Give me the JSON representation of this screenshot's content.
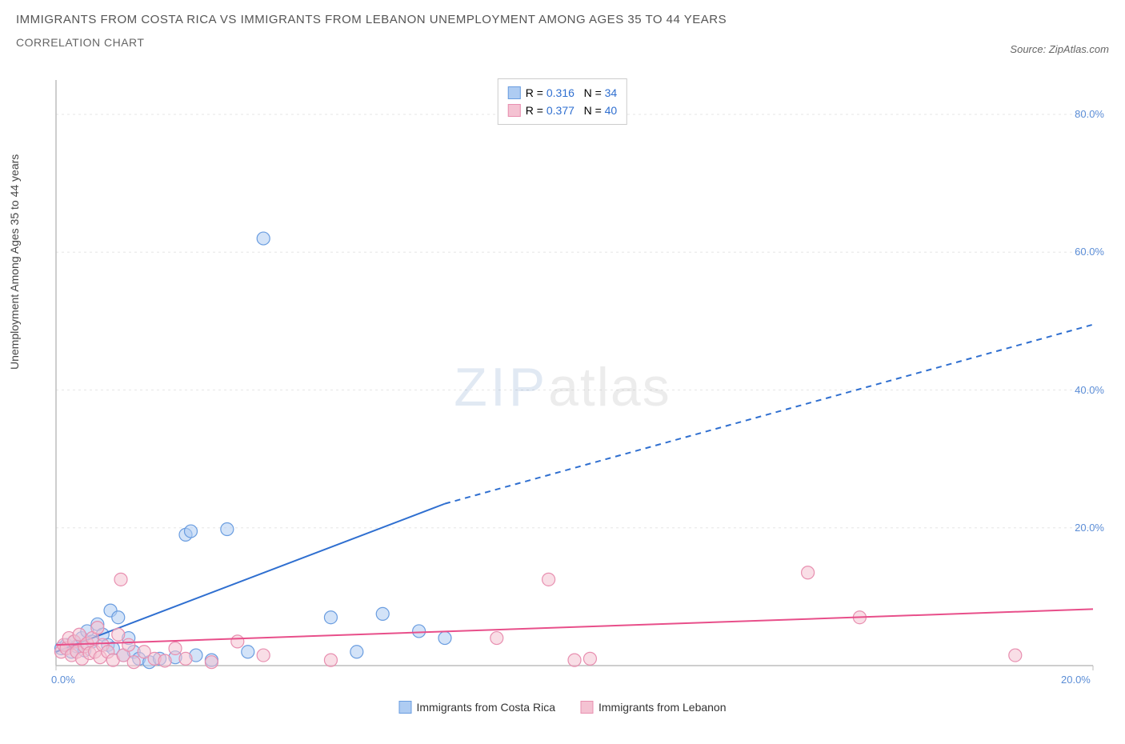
{
  "title": "IMMIGRANTS FROM COSTA RICA VS IMMIGRANTS FROM LEBANON UNEMPLOYMENT AMONG AGES 35 TO 44 YEARS",
  "subtitle": "CORRELATION CHART",
  "source_label": "Source:",
  "source_name": "ZipAtlas.com",
  "watermark_a": "ZIP",
  "watermark_b": "atlas",
  "ylabel": "Unemployment Among Ages 35 to 44 years",
  "chart": {
    "type": "scatter",
    "background_color": "#ffffff",
    "grid_color": "#e6e6e6",
    "axis_color": "#bdbdbd",
    "tick_color": "#5b8dd6",
    "xlim": [
      0,
      20
    ],
    "ylim": [
      0,
      85
    ],
    "ytick_values": [
      20,
      40,
      60,
      80
    ],
    "ytick_labels": [
      "20.0%",
      "40.0%",
      "60.0%",
      "80.0%"
    ],
    "xtick_values": [
      0,
      20
    ],
    "xtick_labels": [
      "0.0%",
      "20.0%"
    ],
    "marker_radius": 8,
    "marker_stroke_width": 1.2,
    "line_width": 2,
    "legend_top": {
      "rows": [
        {
          "swatch_fill": "#aeccf2",
          "swatch_stroke": "#6a9de0",
          "r_label": "R =",
          "r_value": "0.316",
          "n_label": "N =",
          "n_value": "34"
        },
        {
          "swatch_fill": "#f4c2d2",
          "swatch_stroke": "#e88fb0",
          "r_label": "R =",
          "r_value": "0.377",
          "n_label": "N =",
          "n_value": "40"
        }
      ],
      "value_color": "#2f6fd0"
    },
    "legend_bottom": [
      {
        "swatch_fill": "#aeccf2",
        "swatch_stroke": "#6a9de0",
        "label": "Immigrants from Costa Rica"
      },
      {
        "swatch_fill": "#f4c2d2",
        "swatch_stroke": "#e88fb0",
        "label": "Immigrants from Lebanon"
      }
    ],
    "series": [
      {
        "name": "costa_rica",
        "fill": "#aeccf2",
        "stroke": "#6a9de0",
        "fill_opacity": 0.55,
        "points": [
          [
            0.1,
            2.5
          ],
          [
            0.2,
            3.0
          ],
          [
            0.3,
            2.0
          ],
          [
            0.35,
            3.5
          ],
          [
            0.4,
            2.8
          ],
          [
            0.5,
            4.0
          ],
          [
            0.55,
            2.2
          ],
          [
            0.6,
            5.0
          ],
          [
            0.7,
            3.5
          ],
          [
            0.8,
            6.0
          ],
          [
            0.9,
            4.5
          ],
          [
            1.0,
            3.0
          ],
          [
            1.05,
            8.0
          ],
          [
            1.1,
            2.5
          ],
          [
            1.2,
            7.0
          ],
          [
            1.3,
            1.5
          ],
          [
            1.4,
            4.0
          ],
          [
            1.5,
            2.0
          ],
          [
            1.6,
            1.0
          ],
          [
            1.8,
            0.5
          ],
          [
            2.0,
            1.0
          ],
          [
            2.3,
            1.2
          ],
          [
            2.5,
            19.0
          ],
          [
            2.6,
            19.5
          ],
          [
            2.7,
            1.5
          ],
          [
            3.0,
            0.8
          ],
          [
            3.3,
            19.8
          ],
          [
            3.7,
            2.0
          ],
          [
            4.0,
            62.0
          ],
          [
            5.3,
            7.0
          ],
          [
            5.8,
            2.0
          ],
          [
            6.3,
            7.5
          ],
          [
            7.0,
            5.0
          ],
          [
            7.5,
            4.0
          ]
        ],
        "trend": {
          "solid_to_x": 7.5,
          "y1": 2.0,
          "y_at_solid_end": 23.5,
          "y2": 49.5,
          "color": "#2f6fd0"
        }
      },
      {
        "name": "lebanon",
        "fill": "#f4c2d2",
        "stroke": "#e88fb0",
        "fill_opacity": 0.55,
        "points": [
          [
            0.1,
            2.0
          ],
          [
            0.15,
            3.0
          ],
          [
            0.2,
            2.5
          ],
          [
            0.25,
            4.0
          ],
          [
            0.3,
            1.5
          ],
          [
            0.35,
            3.5
          ],
          [
            0.4,
            2.0
          ],
          [
            0.45,
            4.5
          ],
          [
            0.5,
            1.0
          ],
          [
            0.55,
            2.8
          ],
          [
            0.6,
            3.2
          ],
          [
            0.65,
            1.8
          ],
          [
            0.7,
            4.0
          ],
          [
            0.75,
            2.0
          ],
          [
            0.8,
            5.5
          ],
          [
            0.85,
            1.2
          ],
          [
            0.9,
            3.0
          ],
          [
            1.0,
            2.0
          ],
          [
            1.1,
            0.8
          ],
          [
            1.2,
            4.5
          ],
          [
            1.25,
            12.5
          ],
          [
            1.3,
            1.5
          ],
          [
            1.4,
            3.0
          ],
          [
            1.5,
            0.5
          ],
          [
            1.7,
            2.0
          ],
          [
            1.9,
            1.0
          ],
          [
            2.1,
            0.7
          ],
          [
            2.3,
            2.5
          ],
          [
            2.5,
            1.0
          ],
          [
            3.0,
            0.5
          ],
          [
            3.5,
            3.5
          ],
          [
            4.0,
            1.5
          ],
          [
            5.3,
            0.8
          ],
          [
            8.5,
            4.0
          ],
          [
            9.5,
            12.5
          ],
          [
            10.0,
            0.8
          ],
          [
            10.3,
            1.0
          ],
          [
            14.5,
            13.5
          ],
          [
            15.5,
            7.0
          ],
          [
            18.5,
            1.5
          ]
        ],
        "trend": {
          "solid_to_x": 20,
          "y1": 3.0,
          "y_at_solid_end": 8.2,
          "y2": 8.2,
          "color": "#e84f8a"
        }
      }
    ]
  }
}
